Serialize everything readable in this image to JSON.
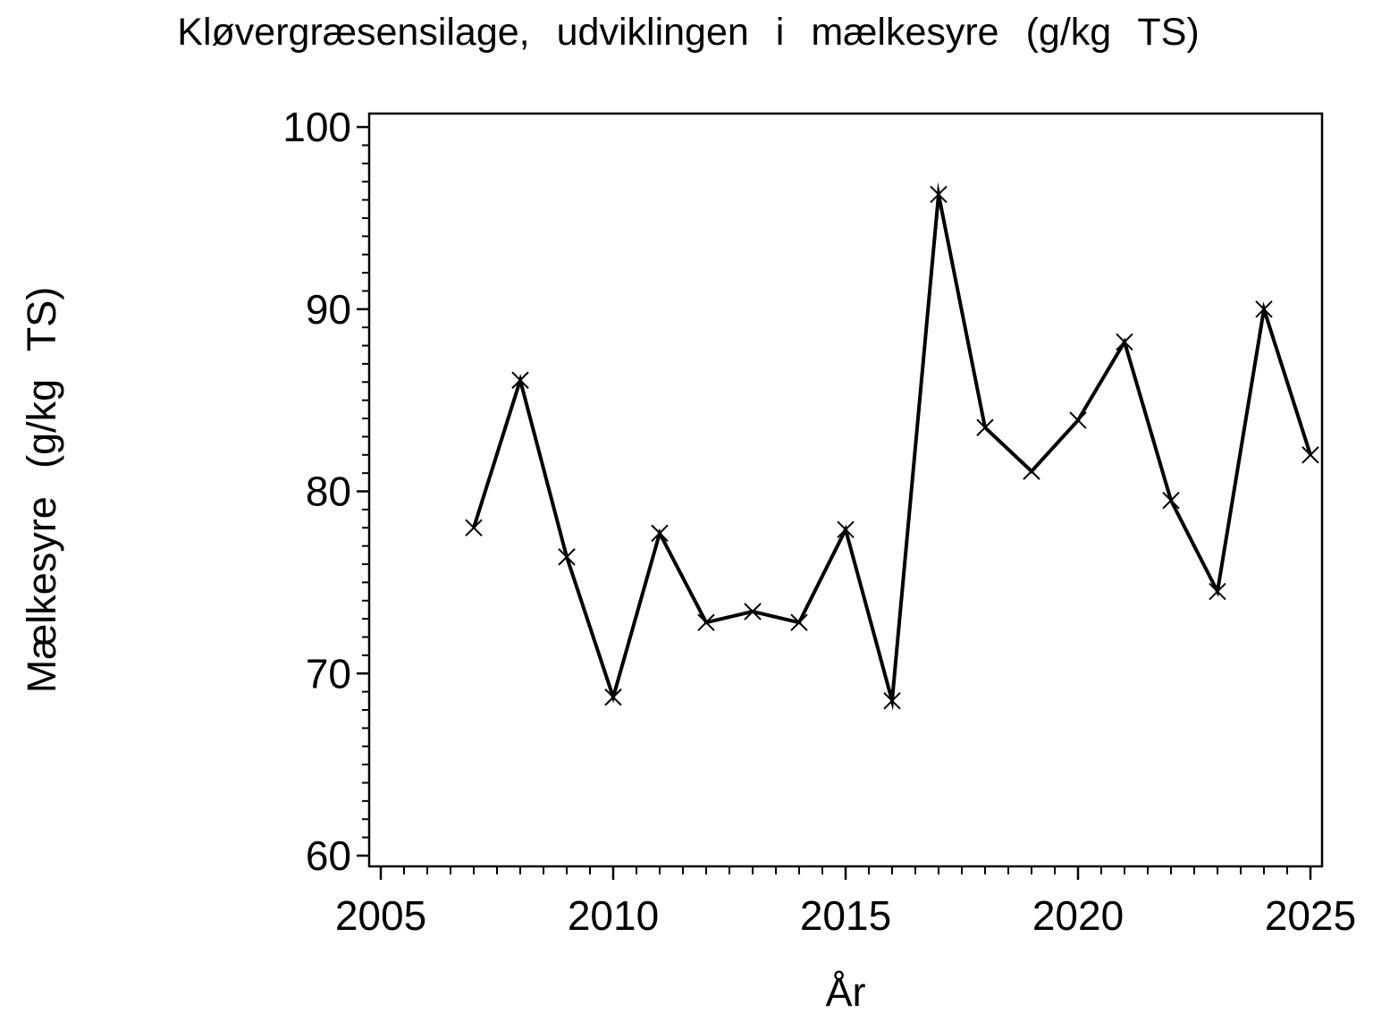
{
  "chart_data": {
    "type": "line",
    "title": "Kløvergræsensilage, udviklingen i mælkesyre (g/kg TS)",
    "xlabel": "År",
    "ylabel": "Mælkesyre (g/kg TS)",
    "x": [
      2007,
      2008,
      2009,
      2010,
      2011,
      2012,
      2013,
      2014,
      2015,
      2016,
      2017,
      2018,
      2019,
      2020,
      2021,
      2022,
      2023,
      2024,
      2025
    ],
    "values": [
      78.0,
      86.1,
      76.4,
      68.7,
      77.7,
      72.8,
      73.4,
      72.8,
      77.9,
      68.5,
      96.3,
      83.5,
      81.1,
      83.9,
      88.2,
      79.5,
      74.5,
      90.0,
      82.0
    ],
    "series_name": "Mælkesyre",
    "xlim": [
      2004.75,
      2025.25
    ],
    "ylim": [
      59.41,
      100.74
    ],
    "xticks_major": [
      2005,
      2010,
      2015,
      2020,
      2025
    ],
    "xtick_minor_step": 0.5,
    "yticks_major": [
      60,
      70,
      80,
      90,
      100
    ],
    "ytick_minor_step": 1,
    "grid": false,
    "legend": null,
    "marker": "x",
    "line_color": "#000000",
    "marker_color": "#000000",
    "text_color": "#000000",
    "background_color": "#ffffff"
  }
}
